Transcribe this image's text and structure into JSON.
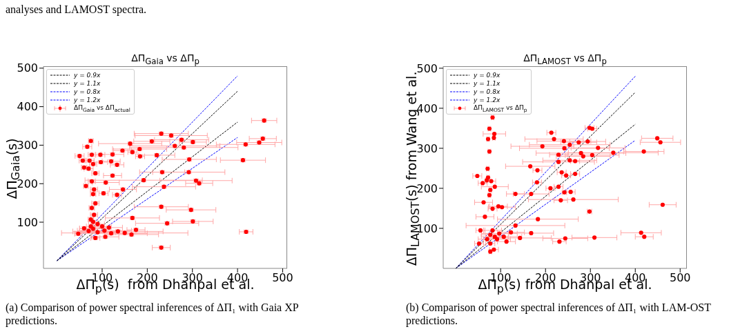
{
  "chart_data": [
    {
      "type": "scatter",
      "title": "ΔΠ$_{Gaia}$ vs ΔΠ$_{p}$",
      "xlabel": "ΔΠ$_{p}$(s)  from Dhanpal et al.",
      "ylabel": "ΔΠ$_{Gaia}$(s)",
      "xlim": [
        -30,
        510
      ],
      "ylim": [
        -20,
        505
      ],
      "xticks": [
        100,
        200,
        300,
        400,
        500
      ],
      "yticks": [
        100,
        200,
        300,
        400,
        500
      ],
      "legend": "top left",
      "annotations": [
        "analyses and LAMOST spectra.",
        "(a) Comparison of power spectral inferences of ΔΠ₁ with Gaia XP predictions."
      ],
      "series": [
        {
          "type": "line",
          "name": "y = 0.9x",
          "color": "#000000",
          "line_style": "dashed",
          "x": [
            0,
            400
          ],
          "values": [
            0,
            360
          ]
        },
        {
          "type": "line",
          "name": "y = 1.1x",
          "color": "#000000",
          "line_style": "dashed",
          "x": [
            0,
            400
          ],
          "values": [
            0,
            440
          ]
        },
        {
          "type": "line",
          "name": "y = 0.8x",
          "color": "#0000ff",
          "line_style": "dashed",
          "x": [
            0,
            400
          ],
          "values": [
            0,
            320
          ]
        },
        {
          "type": "line",
          "name": "y = 1.2x",
          "color": "#0000ff",
          "line_style": "dashed",
          "x": [
            0,
            400
          ],
          "values": [
            0,
            480
          ]
        },
        {
          "type": "scatter",
          "name": "ΔΠ$_{Gaia}$ vs ΔΠ$_{actual}$",
          "color": "#ff0000",
          "marker": "circle",
          "x": [
            459,
            418,
            448,
            456,
            412,
            419,
            231,
            231,
            297,
            301,
            244,
            167,
            292,
            233,
            192,
            308,
            315,
            237,
            146,
            293,
            221,
            184,
            167,
            231,
            253,
            276,
            301,
            261,
            281,
            210,
            183,
            162,
            145,
            123,
            133,
            120,
            123,
            108,
            103,
            133,
            96,
            97,
            75,
            67,
            77,
            72,
            80,
            70,
            85,
            77,
            82,
            80,
            85,
            77,
            82,
            75,
            50,
            57,
            60,
            64,
            70,
            80,
            90,
            105,
            120,
            135,
            150,
            115,
            100,
            75,
            60,
            47,
            85,
            107,
            165,
            175,
            90,
            80
          ],
          "values": [
            364,
            302,
            307,
            317,
            261,
            75,
            34,
            140,
            132,
            102,
            97,
            111,
            230,
            230,
            209,
            208,
            201,
            192,
            185,
            263,
            274,
            271,
            282,
            330,
            325,
            314,
            308,
            298,
            294,
            310,
            290,
            304,
            286,
            276,
            249,
            258,
            221,
            203,
            175,
            171,
            275,
            256,
            311,
            296,
            275,
            260,
            251,
            239,
            227,
            206,
            185,
            173,
            149,
            137,
            119,
            107,
            272,
            260,
            242,
            194,
            77,
            83,
            74,
            78,
            71,
            76,
            72,
            86,
            89,
            89,
            84,
            70,
            59,
            62,
            68,
            80,
            95,
            101
          ],
          "xerrors": [
            28,
            65,
            50,
            30,
            50,
            15,
            20,
            60,
            55,
            45,
            70,
            60,
            80,
            50,
            130,
            80,
            30,
            70,
            30,
            60,
            40,
            10,
            10,
            60,
            80,
            60,
            30,
            100,
            120,
            40,
            60,
            70,
            20,
            25,
            15,
            20,
            20,
            30,
            10,
            10,
            10,
            15,
            5,
            10,
            8,
            10,
            8,
            10,
            8,
            8,
            8,
            6,
            8,
            6,
            8,
            6,
            10,
            8,
            6,
            5,
            20,
            30,
            40,
            60,
            80,
            100,
            140,
            30,
            20,
            10,
            10,
            8,
            10,
            30,
            60,
            20,
            15,
            10
          ],
          "errors": [
            4,
            4,
            4,
            4,
            4,
            4,
            4,
            4,
            4,
            4,
            4,
            4,
            4,
            4,
            4,
            4,
            4,
            4,
            4,
            4,
            4,
            4,
            4,
            4,
            4,
            4,
            4,
            4,
            4,
            4,
            4,
            4,
            4,
            4,
            4,
            4,
            4,
            4,
            4,
            4,
            4,
            4,
            4,
            4,
            4,
            4,
            4,
            4,
            4,
            4,
            4,
            4,
            4,
            4,
            4,
            4,
            4,
            4,
            4,
            4,
            4,
            4,
            4,
            4,
            4,
            4,
            4,
            4,
            4,
            4,
            4,
            4,
            4,
            4,
            4,
            4,
            4,
            4
          ]
        }
      ]
    },
    {
      "type": "scatter",
      "title": "ΔΠ$_{LAMOST}$ vs ΔΠ$_{p}$",
      "xlabel": "ΔΠ$_{p}$(s) from Dhanpal et al.",
      "ylabel": "ΔΠ$_{LAMOST}$(s) from Wang et al.",
      "xlim": [
        -28,
        515
      ],
      "ylim": [
        0,
        505
      ],
      "xticks": [
        100,
        200,
        300,
        400,
        500
      ],
      "yticks": [
        100,
        200,
        300,
        400,
        500
      ],
      "legend": "top left",
      "annotations": [
        "(b) Comparison of power spectral inferences of ΔΠ₁ with LAM-OST predictions."
      ],
      "series": [
        {
          "type": "line",
          "name": "y = 0.9x",
          "color": "#000000",
          "line_style": "dashed",
          "x": [
            0,
            400
          ],
          "values": [
            0,
            360
          ]
        },
        {
          "type": "line",
          "name": "y = 1.1x",
          "color": "#000000",
          "line_style": "dashed",
          "x": [
            0,
            400
          ],
          "values": [
            0,
            440
          ]
        },
        {
          "type": "line",
          "name": "y = 0.8x",
          "color": "#0000ff",
          "line_style": "dashed",
          "x": [
            0,
            400
          ],
          "values": [
            0,
            320
          ]
        },
        {
          "type": "line",
          "name": "y = 1.2x",
          "color": "#0000ff",
          "line_style": "dashed",
          "x": [
            0,
            400
          ],
          "values": [
            0,
            480
          ]
        },
        {
          "type": "scatter",
          "name": "ΔΠ$_{LAMOST}$ vs ΔΠ$_{p}$",
          "color": "#ff0000",
          "marker": "circle",
          "x": [
            449,
            456,
            419,
            351,
            461,
            413,
            420,
            309,
            298,
            262,
            234,
            256,
            211,
            242,
            181,
            182,
            213,
            298,
            304,
            219,
            241,
            254,
            274,
            294,
            193,
            242,
            317,
            279,
            304,
            284,
            229,
            229,
            254,
            266,
            166,
            236,
            246,
            266,
            229,
            133,
            168,
            82,
            75,
            86,
            72,
            85,
            75,
            71,
            72,
            69,
            79,
            48,
            60,
            77,
            87,
            75,
            62,
            82,
            95,
            65,
            103,
            77,
            87,
            97,
            82,
            92,
            70,
            107,
            123,
            143,
            77,
            85,
            77,
            113,
            55,
            52,
            168,
            183,
            231,
            244,
            133
          ],
          "values": [
            325,
            315,
            292,
            289,
            159,
            89,
            79,
            77,
            142,
            172,
            170,
            191,
            200,
            190,
            215,
            245,
            339,
            351,
            349,
            323,
            318,
            309,
            315,
            317,
            305,
            300,
            301,
            288,
            283,
            280,
            284,
            266,
            270,
            268,
            255,
            240,
            232,
            236,
            204,
            186,
            186,
            377,
            349,
            336,
            323,
            326,
            292,
            249,
            227,
            220,
            218,
            231,
            213,
            196,
            204,
            183,
            165,
            149,
            155,
            129,
            153,
            84,
            79,
            87,
            95,
            73,
            73,
            79,
            90,
            76,
            62,
            47,
            42,
            67,
            95,
            62,
            88,
            123,
            67,
            75,
            107
          ],
          "xerrors": [
            35,
            45,
            45,
            100,
            30,
            45,
            20,
            50,
            5,
            100,
            15,
            10,
            10,
            5,
            10,
            10,
            10,
            10,
            10,
            65,
            60,
            90,
            40,
            40,
            70,
            100,
            60,
            100,
            60,
            60,
            20,
            80,
            60,
            10,
            55,
            10,
            10,
            10,
            10,
            20,
            40,
            3,
            3,
            25,
            3,
            3,
            3,
            3,
            3,
            3,
            10,
            10,
            10,
            3,
            30,
            3,
            20,
            10,
            20,
            20,
            30,
            20,
            30,
            40,
            20,
            30,
            20,
            40,
            30,
            70,
            10,
            10,
            3,
            20,
            10,
            10,
            50,
            90,
            15,
            50,
            110
          ]
        }
      ]
    }
  ]
}
